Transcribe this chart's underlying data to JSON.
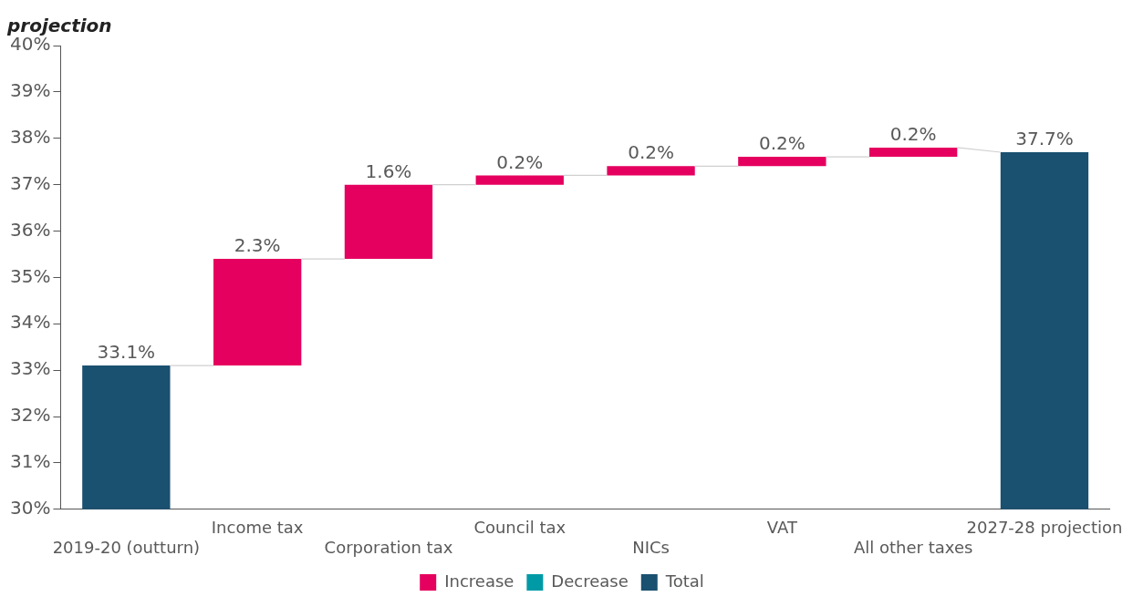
{
  "chart_data": {
    "type": "bar",
    "title": "projection",
    "categories": [
      "2019-20 (outturn)",
      "Income tax",
      "Corporation tax",
      "Council tax",
      "NICs",
      "VAT",
      "All other taxes",
      "2027-28 projection"
    ],
    "series": [
      {
        "name": "Increase",
        "color": "#e5005f",
        "base": [
          null,
          33.1,
          35.4,
          37.0,
          37.2,
          37.4,
          37.6,
          null
        ],
        "values": [
          null,
          2.3,
          1.6,
          0.2,
          0.2,
          0.2,
          0.2,
          null
        ],
        "value_labels": [
          null,
          "2.3%",
          "1.6%",
          "0.2%",
          "0.2%",
          "0.2%",
          "0.2%",
          null
        ]
      },
      {
        "name": "Decrease",
        "color": "#009aa6",
        "values": [
          null,
          null,
          null,
          null,
          null,
          null,
          null,
          null
        ]
      },
      {
        "name": "Total",
        "color": "#1a5070",
        "values": [
          33.1,
          null,
          null,
          null,
          null,
          null,
          null,
          37.7
        ],
        "value_labels": [
          "33.1%",
          null,
          null,
          null,
          null,
          null,
          null,
          "37.7%"
        ]
      }
    ],
    "ylim": [
      30,
      40
    ],
    "yticks": [
      {
        "value": 30,
        "label": "30%"
      },
      {
        "value": 31,
        "label": "31%"
      },
      {
        "value": 32,
        "label": "32%"
      },
      {
        "value": 33,
        "label": "33%"
      },
      {
        "value": 34,
        "label": "34%"
      },
      {
        "value": 35,
        "label": "35%"
      },
      {
        "value": 36,
        "label": "36%"
      },
      {
        "value": 37,
        "label": "37%"
      },
      {
        "value": 38,
        "label": "38%"
      },
      {
        "value": 39,
        "label": "39%"
      },
      {
        "value": 40,
        "label": "40%"
      }
    ],
    "grid": false,
    "legend": "bottom"
  }
}
